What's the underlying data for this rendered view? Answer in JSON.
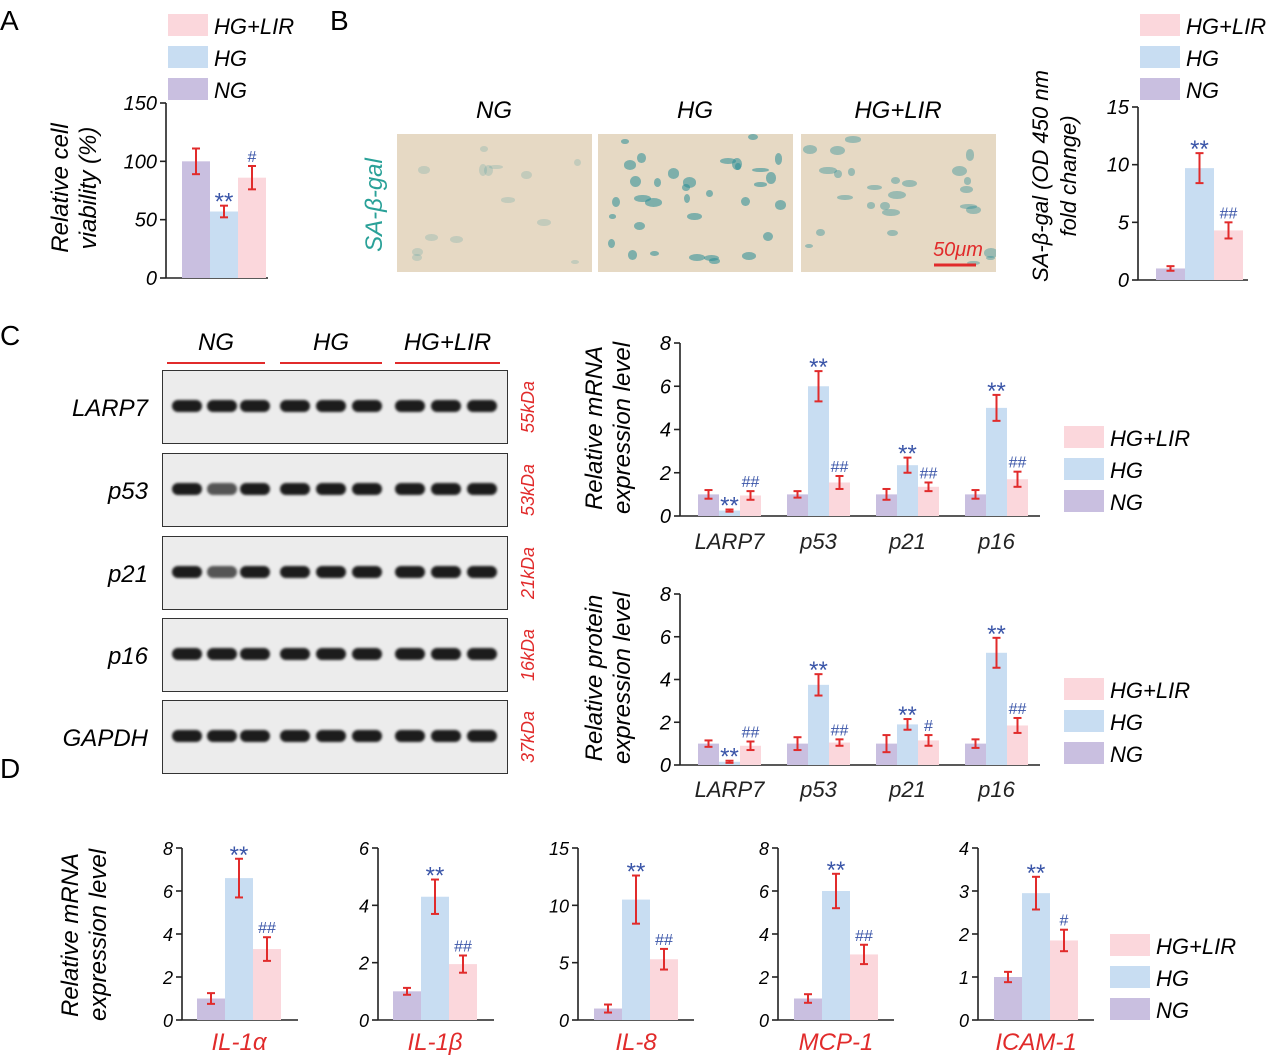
{
  "colors": {
    "NG": "#c9bfe0",
    "HG": "#c8ddf2",
    "HG+LIR": "#fbd7dc",
    "error": "#e12b2b",
    "sig": "#3a55a8",
    "red_label": "#e12b2b",
    "teal": "#2aa198"
  },
  "legend_items": [
    "HG+LIR",
    "HG",
    "NG"
  ],
  "panel_letters": [
    "A",
    "B",
    "C",
    "D"
  ],
  "panelB": {
    "image_labels": [
      "NG",
      "HG",
      "HG+LIR"
    ],
    "row_label": "SA-β-gal",
    "scale_bar": "50μm"
  },
  "panelC_blot": {
    "groups": [
      "NG",
      "HG",
      "HG+LIR"
    ],
    "rows": [
      {
        "protein": "LARP7",
        "size": "55kDa"
      },
      {
        "protein": "p53",
        "size": "53kDa"
      },
      {
        "protein": "p21",
        "size": "21kDa"
      },
      {
        "protein": "p16",
        "size": "16kDa"
      },
      {
        "protein": "GAPDH",
        "size": "37kDa"
      }
    ]
  },
  "chart_data": [
    {
      "id": "A",
      "type": "bar",
      "ylabel": [
        "Relative cell",
        "viability (%)"
      ],
      "ylim": [
        0,
        150
      ],
      "yticks": [
        0,
        50,
        100,
        150
      ],
      "categories": [
        ""
      ],
      "series": [
        {
          "name": "NG",
          "values": [
            100
          ],
          "err": [
            11
          ],
          "sig": [
            ""
          ]
        },
        {
          "name": "HG",
          "values": [
            57
          ],
          "err": [
            5
          ],
          "sig": [
            "**"
          ]
        },
        {
          "name": "HG+LIR",
          "values": [
            86
          ],
          "err": [
            10
          ],
          "sig": [
            "#"
          ]
        }
      ]
    },
    {
      "id": "B",
      "type": "bar",
      "ylabel": [
        "SA-β-gal (OD 450 nm",
        "fold change)"
      ],
      "ylim": [
        0,
        15
      ],
      "yticks": [
        0,
        5,
        10,
        15
      ],
      "categories": [
        ""
      ],
      "series": [
        {
          "name": "NG",
          "values": [
            1.0
          ],
          "err": [
            0.2
          ],
          "sig": [
            ""
          ]
        },
        {
          "name": "HG",
          "values": [
            9.7
          ],
          "err": [
            1.3
          ],
          "sig": [
            "**"
          ]
        },
        {
          "name": "HG+LIR",
          "values": [
            4.3
          ],
          "err": [
            0.7
          ],
          "sig": [
            "##"
          ]
        }
      ]
    },
    {
      "id": "C-mRNA",
      "type": "bar",
      "ylabel": [
        "Relative mRNA",
        "expression level"
      ],
      "ylim": [
        0,
        8
      ],
      "yticks": [
        0,
        2,
        4,
        6,
        8
      ],
      "categories": [
        "LARP7",
        "p53",
        "p21",
        "p16"
      ],
      "series": [
        {
          "name": "NG",
          "values": [
            1.0,
            1.0,
            1.0,
            1.0
          ],
          "err": [
            0.2,
            0.15,
            0.25,
            0.2
          ],
          "sig": [
            "",
            "",
            "",
            ""
          ]
        },
        {
          "name": "HG",
          "values": [
            0.25,
            6.0,
            2.35,
            5.0
          ],
          "err": [
            0.05,
            0.7,
            0.35,
            0.6
          ],
          "sig": [
            "**",
            "**",
            "**",
            "**"
          ]
        },
        {
          "name": "HG+LIR",
          "values": [
            0.95,
            1.55,
            1.35,
            1.7
          ],
          "err": [
            0.2,
            0.3,
            0.2,
            0.35
          ],
          "sig": [
            "##",
            "##",
            "##",
            "##"
          ]
        }
      ]
    },
    {
      "id": "C-protein",
      "type": "bar",
      "ylabel": [
        "Relative protein",
        "expression level"
      ],
      "ylim": [
        0,
        8
      ],
      "yticks": [
        0,
        2,
        4,
        6,
        8
      ],
      "categories": [
        "LARP7",
        "p53",
        "p21",
        "p16"
      ],
      "series": [
        {
          "name": "NG",
          "values": [
            1.0,
            1.0,
            1.0,
            1.0
          ],
          "err": [
            0.15,
            0.3,
            0.4,
            0.2
          ],
          "sig": [
            "",
            "",
            "",
            ""
          ]
        },
        {
          "name": "HG",
          "values": [
            0.15,
            3.75,
            1.9,
            5.25
          ],
          "err": [
            0.05,
            0.5,
            0.25,
            0.7
          ],
          "sig": [
            "**",
            "**",
            "**",
            "**"
          ]
        },
        {
          "name": "HG+LIR",
          "values": [
            0.9,
            1.05,
            1.15,
            1.85
          ],
          "err": [
            0.2,
            0.15,
            0.25,
            0.35
          ],
          "sig": [
            "##",
            "##",
            "#",
            "##"
          ]
        }
      ]
    },
    {
      "id": "D1",
      "type": "bar",
      "ylabel": [
        "Relative mRNA",
        "expression level"
      ],
      "ylim": [
        0,
        8
      ],
      "yticks": [
        0,
        2,
        4,
        6,
        8
      ],
      "categories": [
        "IL-1α"
      ],
      "series": [
        {
          "name": "NG",
          "values": [
            1.0
          ],
          "err": [
            0.25
          ],
          "sig": [
            ""
          ]
        },
        {
          "name": "HG",
          "values": [
            6.6
          ],
          "err": [
            0.9
          ],
          "sig": [
            "**"
          ]
        },
        {
          "name": "HG+LIR",
          "values": [
            3.3
          ],
          "err": [
            0.55
          ],
          "sig": [
            "##"
          ]
        }
      ]
    },
    {
      "id": "D2",
      "type": "bar",
      "ylabel": [],
      "ylim": [
        0,
        6
      ],
      "yticks": [
        0,
        2,
        4,
        6
      ],
      "categories": [
        "IL-1β"
      ],
      "series": [
        {
          "name": "NG",
          "values": [
            1.0
          ],
          "err": [
            0.12
          ],
          "sig": [
            ""
          ]
        },
        {
          "name": "HG",
          "values": [
            4.3
          ],
          "err": [
            0.6
          ],
          "sig": [
            "**"
          ]
        },
        {
          "name": "HG+LIR",
          "values": [
            1.95
          ],
          "err": [
            0.3
          ],
          "sig": [
            "##"
          ]
        }
      ]
    },
    {
      "id": "D3",
      "type": "bar",
      "ylabel": [],
      "ylim": [
        0,
        15
      ],
      "yticks": [
        0,
        5,
        10,
        15
      ],
      "categories": [
        "IL-8"
      ],
      "series": [
        {
          "name": "NG",
          "values": [
            1.0
          ],
          "err": [
            0.35
          ],
          "sig": [
            ""
          ]
        },
        {
          "name": "HG",
          "values": [
            10.5
          ],
          "err": [
            2.1
          ],
          "sig": [
            "**"
          ]
        },
        {
          "name": "HG+LIR",
          "values": [
            5.3
          ],
          "err": [
            0.9
          ],
          "sig": [
            "##"
          ]
        }
      ]
    },
    {
      "id": "D4",
      "type": "bar",
      "ylabel": [],
      "ylim": [
        0,
        8
      ],
      "yticks": [
        0,
        2,
        4,
        6,
        8
      ],
      "categories": [
        "MCP-1"
      ],
      "series": [
        {
          "name": "NG",
          "values": [
            1.0
          ],
          "err": [
            0.2
          ],
          "sig": [
            ""
          ]
        },
        {
          "name": "HG",
          "values": [
            6.0
          ],
          "err": [
            0.8
          ],
          "sig": [
            "**"
          ]
        },
        {
          "name": "HG+LIR",
          "values": [
            3.05
          ],
          "err": [
            0.45
          ],
          "sig": [
            "##"
          ]
        }
      ]
    },
    {
      "id": "D5",
      "type": "bar",
      "ylabel": [],
      "ylim": [
        0,
        4
      ],
      "yticks": [
        0,
        1,
        2,
        3,
        4
      ],
      "categories": [
        "ICAM-1"
      ],
      "series": [
        {
          "name": "NG",
          "values": [
            1.0
          ],
          "err": [
            0.12
          ],
          "sig": [
            ""
          ]
        },
        {
          "name": "HG",
          "values": [
            2.95
          ],
          "err": [
            0.38
          ],
          "sig": [
            "**"
          ]
        },
        {
          "name": "HG+LIR",
          "values": [
            1.85
          ],
          "err": [
            0.25
          ],
          "sig": [
            "#"
          ]
        }
      ]
    }
  ]
}
